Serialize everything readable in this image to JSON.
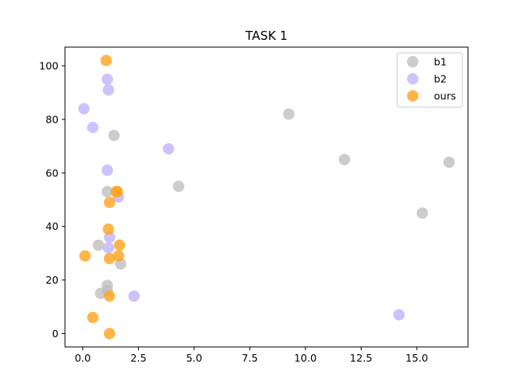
{
  "chart_data": {
    "type": "scatter",
    "title": "TASK 1",
    "xlabel": "",
    "ylabel": "",
    "xlim": [
      -0.8,
      17.3
    ],
    "ylim": [
      -5,
      107
    ],
    "xticks": [
      0.0,
      2.5,
      5.0,
      7.5,
      10.0,
      12.5,
      15.0
    ],
    "xtick_labels": [
      "0.0",
      "2.5",
      "5.0",
      "7.5",
      "10.0",
      "12.5",
      "15.0"
    ],
    "yticks": [
      0,
      20,
      40,
      60,
      80,
      100
    ],
    "ytick_labels": [
      "0",
      "20",
      "40",
      "60",
      "80",
      "100"
    ],
    "grid": false,
    "legend_position": "top-right",
    "series": [
      {
        "name": "b1",
        "color": "#bfbfbf",
        "points": [
          {
            "x": 9.25,
            "y": 82
          },
          {
            "x": 11.75,
            "y": 65
          },
          {
            "x": 16.45,
            "y": 64
          },
          {
            "x": 1.4,
            "y": 74
          },
          {
            "x": 4.3,
            "y": 55
          },
          {
            "x": 15.25,
            "y": 45
          },
          {
            "x": 1.1,
            "y": 53
          },
          {
            "x": 0.7,
            "y": 33
          },
          {
            "x": 1.7,
            "y": 26
          },
          {
            "x": 0.8,
            "y": 15
          },
          {
            "x": 1.1,
            "y": 18
          },
          {
            "x": 1.1,
            "y": 16
          }
        ]
      },
      {
        "name": "b2",
        "color": "#c0b3ff",
        "points": [
          {
            "x": 1.1,
            "y": 95
          },
          {
            "x": 1.15,
            "y": 91
          },
          {
            "x": 0.05,
            "y": 84
          },
          {
            "x": 0.45,
            "y": 77
          },
          {
            "x": 3.85,
            "y": 69
          },
          {
            "x": 1.1,
            "y": 61
          },
          {
            "x": 1.6,
            "y": 51
          },
          {
            "x": 1.2,
            "y": 36
          },
          {
            "x": 1.15,
            "y": 32
          },
          {
            "x": 2.3,
            "y": 14
          },
          {
            "x": 14.2,
            "y": 7
          }
        ]
      },
      {
        "name": "ours",
        "color": "#ffa31a",
        "points": [
          {
            "x": 1.05,
            "y": 102
          },
          {
            "x": 1.5,
            "y": 53
          },
          {
            "x": 1.55,
            "y": 53
          },
          {
            "x": 1.2,
            "y": 49
          },
          {
            "x": 1.15,
            "y": 39
          },
          {
            "x": 1.65,
            "y": 33
          },
          {
            "x": 0.1,
            "y": 29
          },
          {
            "x": 1.6,
            "y": 29
          },
          {
            "x": 1.2,
            "y": 28
          },
          {
            "x": 1.2,
            "y": 14
          },
          {
            "x": 0.45,
            "y": 6
          },
          {
            "x": 1.2,
            "y": 0
          }
        ]
      }
    ]
  }
}
